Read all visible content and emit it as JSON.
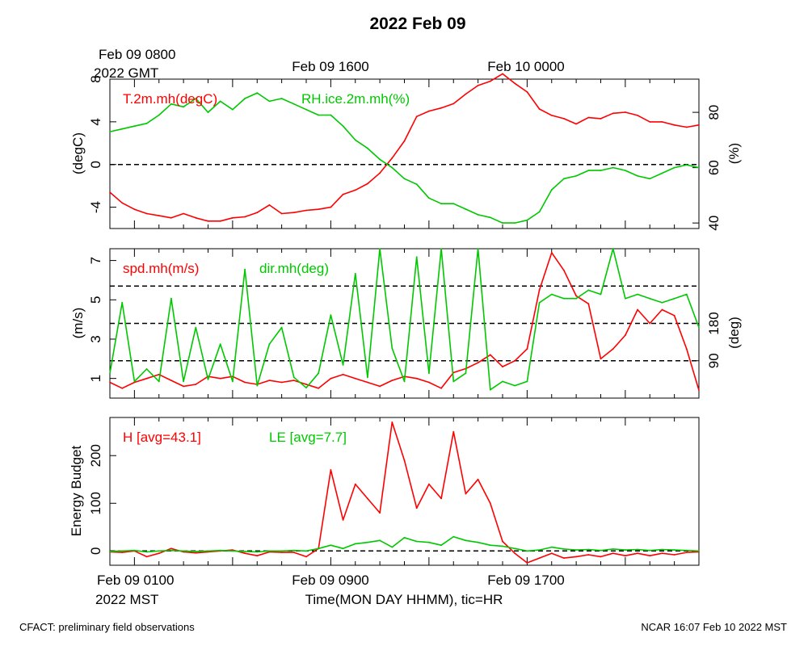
{
  "title": "2022 Feb 09",
  "top_time_labels": {
    "first_line1": "Feb 09 0800",
    "first_line2": "2022 GMT",
    "second": "Feb 09 1600",
    "third": "Feb 10 0000"
  },
  "bottom_time_labels": {
    "first_line1": "Feb 09 0100",
    "first_line2": "2022 MST",
    "second": "Feb 09 0900",
    "third": "Feb 09 1700"
  },
  "xlabel": "Time(MON DAY HHMM), tic=HR",
  "footer_left": "CFACT: preliminary field observations",
  "footer_right": "NCAR 16:07 Feb 10 2022 MST",
  "colors": {
    "red": "#ff0000",
    "green": "#00c800"
  },
  "chart_data": [
    {
      "type": "line",
      "panel": "top",
      "xlim": [
        0,
        24
      ],
      "x_unit": "hours since Feb 09 0000 MST",
      "ylabel_left": "(degC)",
      "ylim_left": [
        -6,
        8
      ],
      "yticks_left": [
        -4,
        0,
        4,
        8
      ],
      "ylabel_right": "(%)",
      "ylim_right": [
        38,
        92
      ],
      "yticks_right": [
        40,
        60,
        80
      ],
      "reference_lines_left": [
        0
      ],
      "series": [
        {
          "name": "T.2m.mh(degC)",
          "axis": "left",
          "color": "red",
          "x": [
            0,
            0.5,
            1,
            1.5,
            2,
            2.5,
            3,
            3.5,
            4,
            4.5,
            5,
            5.5,
            6,
            6.5,
            7,
            7.5,
            8,
            8.5,
            9,
            9.5,
            10,
            10.5,
            11,
            11.5,
            12,
            12.5,
            13,
            13.5,
            14,
            14.5,
            15,
            15.5,
            16,
            16.5,
            17,
            17.5,
            18,
            18.5,
            19,
            19.5,
            20,
            20.5,
            21,
            21.5,
            22,
            22.5,
            23,
            23.5,
            24
          ],
          "values": [
            -2.6,
            -3.6,
            -4.2,
            -4.6,
            -4.8,
            -5.0,
            -4.6,
            -5.0,
            -5.3,
            -5.3,
            -5.0,
            -4.9,
            -4.5,
            -3.8,
            -4.6,
            -4.5,
            -4.3,
            -4.2,
            -4.0,
            -2.8,
            -2.4,
            -1.8,
            -0.8,
            0.6,
            2.2,
            4.5,
            5.0,
            5.3,
            5.7,
            6.6,
            7.4,
            7.8,
            8.5,
            7.6,
            6.8,
            5.2,
            4.6,
            4.3,
            3.8,
            4.4,
            4.3,
            4.8,
            4.9,
            4.6,
            4.0,
            4.0,
            3.7,
            3.5,
            3.7
          ]
        },
        {
          "name": "RH.ice.2m.mh(%)",
          "axis": "right",
          "color": "green",
          "x": [
            0,
            0.5,
            1,
            1.5,
            2,
            2.5,
            3,
            3.5,
            4,
            4.5,
            5,
            5.5,
            6,
            6.5,
            7,
            7.5,
            8,
            8.5,
            9,
            9.5,
            10,
            10.5,
            11,
            11.5,
            12,
            12.5,
            13,
            13.5,
            14,
            14.5,
            15,
            15.5,
            16,
            16.5,
            17,
            17.5,
            18,
            18.5,
            19,
            19.5,
            20,
            20.5,
            21,
            21.5,
            22,
            22.5,
            23,
            23.5,
            24
          ],
          "values": [
            73,
            74,
            75,
            76,
            79,
            83,
            82,
            85,
            80,
            84,
            81,
            85,
            87,
            84,
            85,
            83,
            81,
            79,
            79,
            75,
            70,
            67,
            63,
            60,
            56,
            54,
            49,
            47,
            47,
            45,
            43,
            42,
            40,
            40,
            41,
            44,
            52,
            56,
            57,
            59,
            59,
            60,
            59,
            57,
            56,
            58,
            60,
            61,
            60
          ]
        }
      ]
    },
    {
      "type": "line",
      "panel": "middle",
      "xlim": [
        0,
        24
      ],
      "x_unit": "hours since Feb 09 0000 MST",
      "ylabel_left": "(m/s)",
      "ylim_left": [
        0,
        7.6
      ],
      "yticks_left": [
        1,
        3,
        5,
        7
      ],
      "ylabel_right": "(deg)",
      "ylim_right": [
        0,
        360
      ],
      "yticks_right": [
        90,
        180
      ],
      "reference_lines_right": [
        90,
        180,
        270
      ],
      "series": [
        {
          "name": "spd.mh(m/s)",
          "axis": "left",
          "color": "red",
          "x": [
            0,
            0.5,
            1,
            1.5,
            2,
            2.5,
            3,
            3.5,
            4,
            4.5,
            5,
            5.5,
            6,
            6.5,
            7,
            7.5,
            8,
            8.5,
            9,
            9.5,
            10,
            10.5,
            11,
            11.5,
            12,
            12.5,
            13,
            13.5,
            14,
            14.5,
            15,
            15.5,
            16,
            16.5,
            17,
            17.5,
            18,
            18.5,
            19,
            19.5,
            20,
            20.5,
            21,
            21.5,
            22,
            22.5,
            23,
            23.5,
            24
          ],
          "values": [
            0.8,
            0.5,
            0.8,
            1.0,
            1.2,
            0.9,
            0.6,
            0.7,
            1.1,
            1.0,
            1.1,
            0.8,
            0.7,
            0.9,
            0.8,
            0.9,
            0.7,
            0.5,
            1.0,
            1.2,
            1.0,
            0.8,
            0.6,
            0.9,
            1.1,
            1.0,
            0.8,
            0.5,
            1.3,
            1.5,
            1.8,
            2.2,
            1.6,
            1.9,
            2.5,
            5.5,
            7.4,
            6.5,
            5.2,
            4.8,
            2.0,
            2.5,
            3.2,
            4.5,
            3.8,
            4.5,
            4.2,
            2.5,
            0.4
          ]
        },
        {
          "name": "dir.mh(deg)",
          "axis": "right",
          "color": "green",
          "x": [
            0,
            0.5,
            1,
            1.5,
            2,
            2.5,
            3,
            3.5,
            4,
            4.5,
            5,
            5.5,
            6,
            6.5,
            7,
            7.5,
            8,
            8.5,
            9,
            9.5,
            10,
            10.5,
            11,
            11.5,
            12,
            12.5,
            13,
            13.5,
            14,
            14.5,
            15,
            15.5,
            16,
            16.5,
            17,
            17.5,
            18,
            18.5,
            19,
            19.5,
            20,
            20.5,
            21,
            21.5,
            22,
            22.5,
            23,
            23.5,
            24
          ],
          "values": [
            60,
            230,
            40,
            70,
            40,
            240,
            40,
            170,
            45,
            130,
            40,
            310,
            30,
            130,
            170,
            50,
            25,
            60,
            200,
            80,
            300,
            50,
            360,
            120,
            40,
            340,
            60,
            360,
            40,
            60,
            360,
            20,
            40,
            30,
            40,
            230,
            250,
            240,
            240,
            260,
            250,
            360,
            240,
            250,
            240,
            230,
            240,
            250,
            170
          ]
        }
      ]
    },
    {
      "type": "line",
      "panel": "bottom",
      "xlim": [
        0,
        24
      ],
      "x_unit": "hours since Feb 09 0000 MST",
      "ylabel_left": "Energy Budget",
      "ylim_left": [
        -30,
        280
      ],
      "yticks_left": [
        0,
        100,
        200
      ],
      "reference_lines_left": [
        0
      ],
      "series": [
        {
          "name": "H [avg=43.1]",
          "axis": "left",
          "color": "red",
          "x": [
            0,
            0.5,
            1,
            1.5,
            2,
            2.5,
            3,
            3.5,
            4,
            4.5,
            5,
            5.5,
            6,
            6.5,
            7,
            7.5,
            8,
            8.5,
            9,
            9.5,
            10,
            10.5,
            11,
            11.5,
            12,
            12.5,
            13,
            13.5,
            14,
            14.5,
            15,
            15.5,
            16,
            16.5,
            17,
            17.5,
            18,
            18.5,
            19,
            19.5,
            20,
            20.5,
            21,
            21.5,
            22,
            22.5,
            23,
            23.5,
            24
          ],
          "values": [
            -2,
            -3,
            0,
            -12,
            -5,
            5,
            -2,
            -4,
            -2,
            0,
            2,
            -5,
            -10,
            -2,
            -3,
            -3,
            -12,
            5,
            170,
            65,
            140,
            110,
            80,
            270,
            190,
            90,
            140,
            110,
            250,
            120,
            150,
            100,
            20,
            -5,
            -25,
            -15,
            -5,
            -15,
            -12,
            -8,
            -12,
            -5,
            -10,
            -5,
            -10,
            -5,
            -8,
            -3,
            -2
          ]
        },
        {
          "name": "LE [avg=7.7]",
          "axis": "left",
          "color": "green",
          "x": [
            0,
            0.5,
            1,
            1.5,
            2,
            2.5,
            3,
            3.5,
            4,
            4.5,
            5,
            5.5,
            6,
            6.5,
            7,
            7.5,
            8,
            8.5,
            9,
            9.5,
            10,
            10.5,
            11,
            11.5,
            12,
            12.5,
            13,
            13.5,
            14,
            14.5,
            15,
            15.5,
            16,
            16.5,
            17,
            17.5,
            18,
            18.5,
            19,
            19.5,
            20,
            20.5,
            21,
            21.5,
            22,
            22.5,
            23,
            23.5,
            24
          ],
          "values": [
            -1,
            0,
            1,
            -2,
            0,
            1,
            0,
            -1,
            0,
            1,
            0,
            -1,
            -2,
            0,
            0,
            1,
            0,
            5,
            12,
            5,
            15,
            18,
            22,
            8,
            28,
            20,
            18,
            12,
            30,
            22,
            18,
            12,
            10,
            5,
            0,
            2,
            8,
            4,
            2,
            3,
            1,
            4,
            2,
            3,
            1,
            3,
            2,
            1,
            0
          ]
        }
      ]
    }
  ]
}
